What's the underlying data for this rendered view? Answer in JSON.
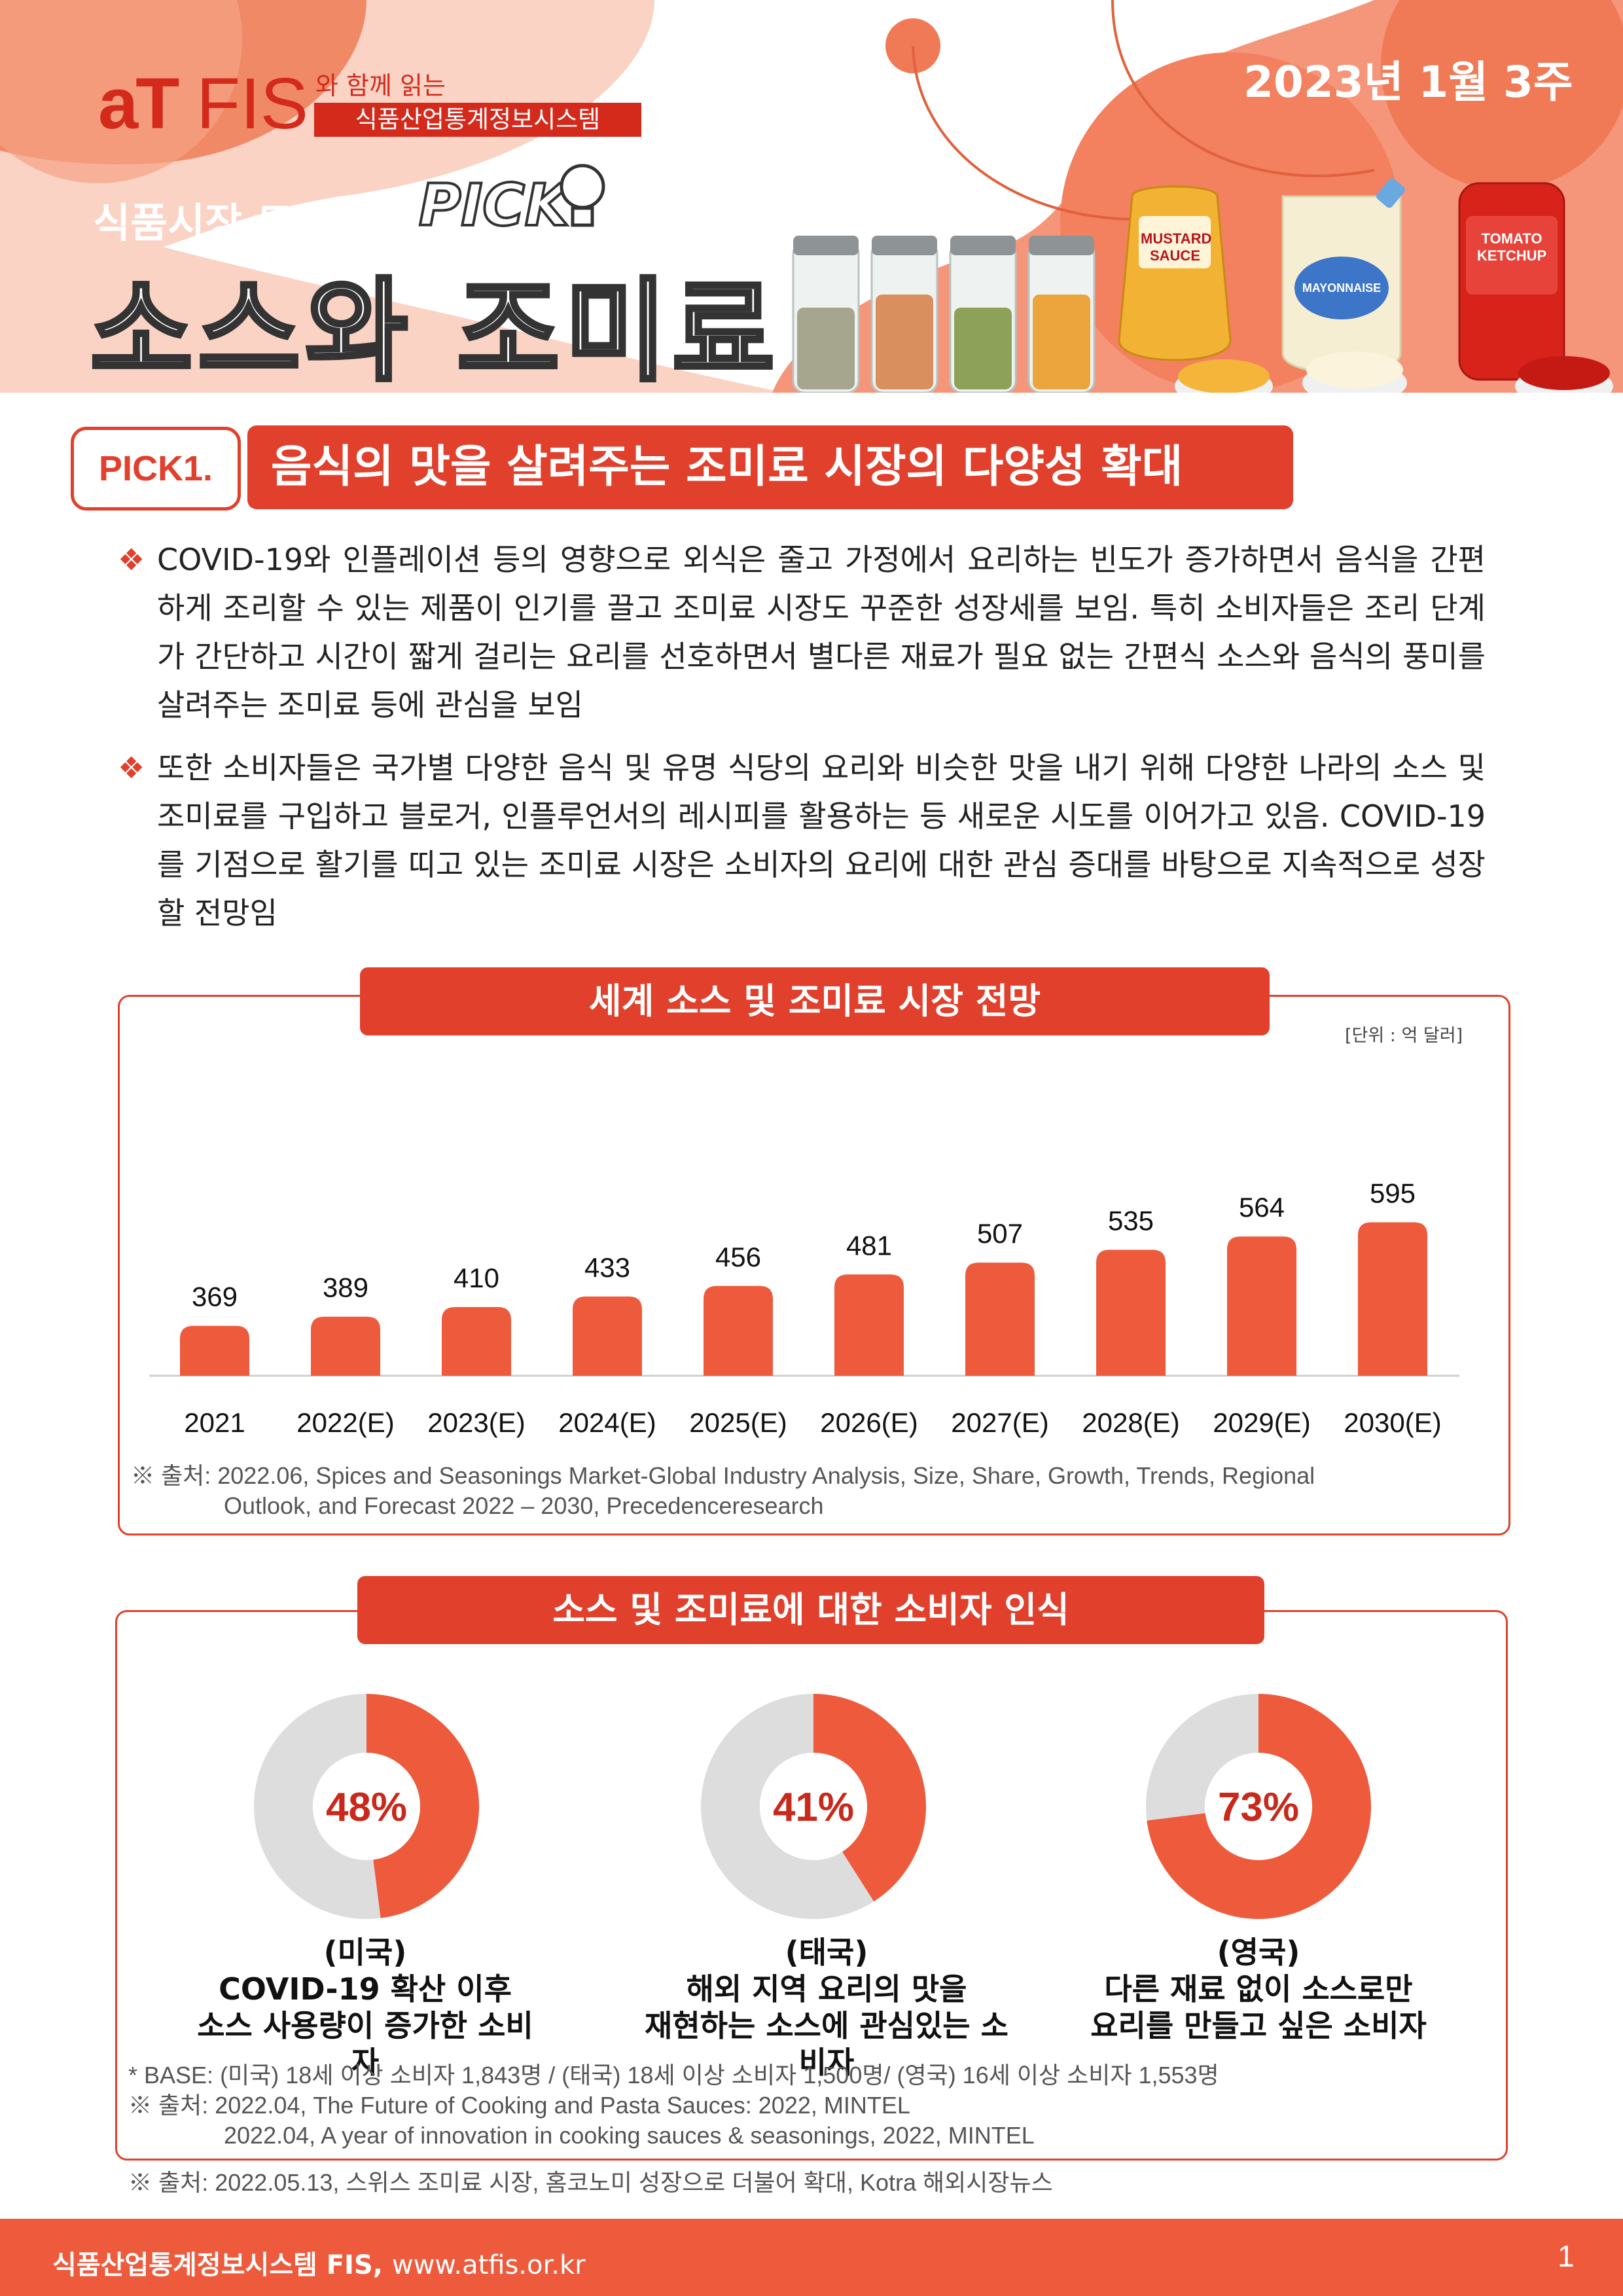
{
  "header": {
    "logo_at": "aT",
    "logo_fis": "FIS",
    "logo_with": "와 함께 읽는",
    "logo_system": "식품산업통계정보시스템",
    "week": "2023년 1월 3주",
    "trend_label": "식품시장 트렌",
    "pick_badge": "PICK",
    "title": "소스와 조미료",
    "mustard_label": "MUSTARD SAUCE",
    "mayo_label": "MAYONNAISE",
    "ketchup_label": "TOMATO KETCHUP"
  },
  "pick1": {
    "label": "PICK1.",
    "title": "음식의 맛을 살려주는 조미료 시장의 다양성 확대",
    "paragraphs": [
      "COVID-19와 인플레이션 등의 영향으로 외식은 줄고 가정에서 요리하는 빈도가 증가하면서 음식을 간편하게 조리할 수 있는 제품이 인기를 끌고 조미료 시장도 꾸준한 성장세를 보임. 특히 소비자들은 조리 단계가 간단하고 시간이 짧게 걸리는 요리를 선호하면서 별다른 재료가 필요 없는 간편식 소스와 음식의 풍미를 살려주는 조미료 등에 관심을 보임",
      "또한 소비자들은 국가별 다양한 음식 및 유명 식당의 요리와 비슷한 맛을 내기 위해 다양한 나라의 소스 및 조미료를 구입하고 블로거, 인플루언서의 레시피를 활용하는 등 새로운 시도를 이어가고 있음. COVID-19를 기점으로 활기를 띠고 있는 조미료 시장은 소비자의 요리에 대한 관심 증대를 바탕으로 지속적으로 성장할 전망임"
    ],
    "bullet": "❖"
  },
  "chart1": {
    "title": "세계 소스 및 조미료 시장 전망",
    "unit": "[단위 : 억 달러]",
    "source_line1": "※ 출처: 2022.06, Spices and Seasonings Market-Global Industry Analysis, Size, Share, Growth, Trends, Regional",
    "source_line2": "Outlook, and Forecast 2022 – 2030, Precedenceresearch"
  },
  "chart_data": [
    {
      "type": "bar",
      "title": "세계 소스 및 조미료 시장 전망",
      "unit": "[단위 : 억 달러]",
      "categories": [
        "2021",
        "2022(E)",
        "2023(E)",
        "2024(E)",
        "2025(E)",
        "2026(E)",
        "2027(E)",
        "2028(E)",
        "2029(E)",
        "2030(E)"
      ],
      "values": [
        369,
        389,
        410,
        433,
        456,
        481,
        507,
        535,
        564,
        595
      ],
      "color": "#ee5a3c",
      "grid": false
    },
    {
      "type": "pie",
      "values": [
        48,
        52
      ],
      "label": "48%",
      "colors": [
        "#ee5a3c",
        "#dddddd"
      ]
    },
    {
      "type": "pie",
      "values": [
        41,
        59
      ],
      "label": "41%",
      "colors": [
        "#ee5a3c",
        "#dddddd"
      ]
    },
    {
      "type": "pie",
      "values": [
        73,
        27
      ],
      "label": "73%",
      "colors": [
        "#ee5a3c",
        "#dddddd"
      ]
    }
  ],
  "chart2": {
    "title": "소스 및 조미료에 대한 소비자 인식",
    "captions": [
      [
        "(미국)",
        "COVID-19 확산 이후",
        "소스 사용량이 증가한 소비자"
      ],
      [
        "(태국)",
        "해외 지역 요리의 맛을",
        "재현하는 소스에 관심있는 소비자"
      ],
      [
        "(영국)",
        "다른 재료 없이 소스로만",
        "요리를 만들고 싶은 소비자"
      ]
    ],
    "base": "* BASE: (미국) 18세 이상 소비자 1,843명 / (태국) 18세 이상 소비자 1,500명/ (영국) 16세 이상 소비자 1,553명",
    "source_line1": "※ 출처: 2022.04, The Future of Cooking and Pasta Sauces: 2022, MINTEL",
    "source_line2": "2022.04, A year of innovation in cooking sauces & seasonings, 2022, MINTEL"
  },
  "bottom_source": "※ 출처: 2022.05.13, 스위스 조미료 시장, 홈코노미 성장으로 더불어 확대, Kotra 해외시장뉴스",
  "footer": {
    "system": "식품산업통계정보시스템 FIS,",
    "url": "www.atfis.or.kr",
    "page": "1"
  },
  "colors": {
    "accent": "#e0402c",
    "bar": "#ee5a3c",
    "donut_rest": "#dddddd",
    "header_bg": "#f8b89e",
    "header_dark": "#f07a55"
  }
}
